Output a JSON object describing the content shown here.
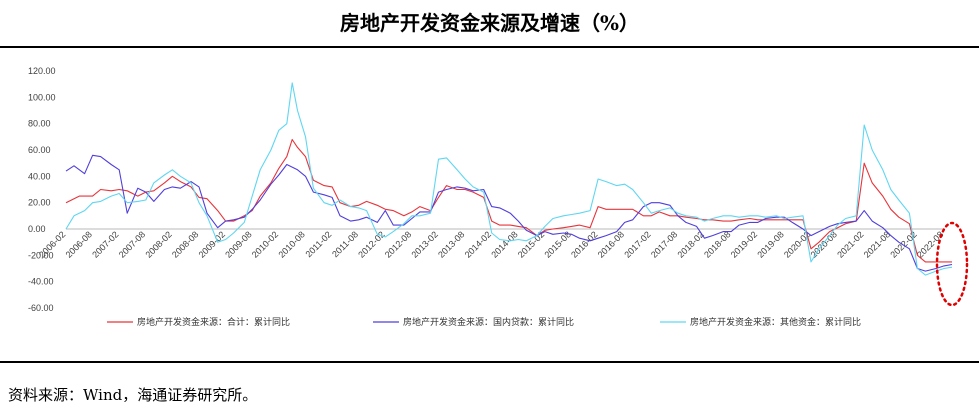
{
  "header": {
    "title": "房地产开发资金来源及增速（%）"
  },
  "footer": {
    "source": "资料来源：Wind，海通证券研究所。"
  },
  "chart_data": {
    "type": "line",
    "title": "房地产开发资金来源及增速（%）",
    "xlabel": "",
    "ylabel": "",
    "ylim": [
      -60,
      120
    ],
    "y_ticks": [
      "120.00",
      "100.00",
      "80.00",
      "60.00",
      "40.00",
      "20.00",
      "0.00",
      "-20.00",
      "-40.00",
      "-60.00"
    ],
    "x_ticks": [
      "2006-02",
      "2006-08",
      "2007-02",
      "2007-08",
      "2008-02",
      "2008-08",
      "2009-02",
      "2009-08",
      "2010-02",
      "2010-08",
      "2011-02",
      "2011-08",
      "2012-02",
      "2012-08",
      "2013-02",
      "2013-08",
      "2014-02",
      "2014-08",
      "2015-02",
      "2015-08",
      "2016-02",
      "2016-08",
      "2017-02",
      "2017-08",
      "2018-02",
      "2018-08",
      "2019-02",
      "2019-08",
      "2020-02",
      "2020-08",
      "2021-02",
      "2021-08",
      "2022-02",
      "2022-08"
    ],
    "legend_position": "bottom",
    "grid": false,
    "series": [
      {
        "name": "房地产开发资金来源：合计：累计同比",
        "color": "#e8343a",
        "points": [
          [
            0,
            20
          ],
          [
            0.5,
            25
          ],
          [
            1,
            25
          ],
          [
            1.3,
            30
          ],
          [
            1.7,
            29
          ],
          [
            2,
            30
          ],
          [
            2.3,
            29
          ],
          [
            2.7,
            25
          ],
          [
            3,
            28
          ],
          [
            3.3,
            29
          ],
          [
            3.7,
            35
          ],
          [
            4,
            40
          ],
          [
            4.3,
            36
          ],
          [
            4.7,
            32
          ],
          [
            5,
            24
          ],
          [
            5.3,
            23
          ],
          [
            5.7,
            14
          ],
          [
            6,
            6
          ],
          [
            6.3,
            6
          ],
          [
            6.7,
            10
          ],
          [
            7,
            14
          ],
          [
            7.3,
            25
          ],
          [
            7.7,
            35
          ],
          [
            8,
            46
          ],
          [
            8.3,
            55
          ],
          [
            8.5,
            68
          ],
          [
            8.7,
            62
          ],
          [
            9,
            55
          ],
          [
            9.3,
            37
          ],
          [
            9.7,
            33
          ],
          [
            10,
            32
          ],
          [
            10.3,
            20
          ],
          [
            10.7,
            17
          ],
          [
            11,
            18
          ],
          [
            11.3,
            21
          ],
          [
            11.7,
            18
          ],
          [
            12,
            15
          ],
          [
            12.3,
            14
          ],
          [
            12.7,
            10
          ],
          [
            13,
            13
          ],
          [
            13.3,
            17
          ],
          [
            13.7,
            14
          ],
          [
            14,
            24
          ],
          [
            14.3,
            33
          ],
          [
            14.7,
            30
          ],
          [
            15,
            30
          ],
          [
            15.3,
            28
          ],
          [
            15.7,
            24
          ],
          [
            16,
            6
          ],
          [
            16.3,
            3
          ],
          [
            16.7,
            3
          ],
          [
            17,
            2
          ],
          [
            17.3,
            1
          ],
          [
            17.7,
            -5
          ],
          [
            18,
            -1
          ],
          [
            18.3,
            0
          ],
          [
            18.7,
            1
          ],
          [
            19,
            2
          ],
          [
            19.3,
            3
          ],
          [
            19.7,
            1
          ],
          [
            20,
            17
          ],
          [
            20.3,
            15
          ],
          [
            20.7,
            15
          ],
          [
            21,
            15
          ],
          [
            21.3,
            15
          ],
          [
            21.7,
            10
          ],
          [
            22,
            10
          ],
          [
            22.3,
            13
          ],
          [
            22.7,
            10
          ],
          [
            23,
            10
          ],
          [
            23.3,
            9
          ],
          [
            23.7,
            8
          ],
          [
            24,
            7
          ],
          [
            24.3,
            7
          ],
          [
            24.7,
            6
          ],
          [
            25,
            6
          ],
          [
            25.3,
            7
          ],
          [
            25.7,
            8
          ],
          [
            26,
            7
          ],
          [
            26.3,
            7
          ],
          [
            26.7,
            7
          ],
          [
            27,
            7
          ],
          [
            27.3,
            7
          ],
          [
            27.7,
            7
          ],
          [
            28,
            -15
          ],
          [
            28.3,
            -10
          ],
          [
            28.7,
            -2
          ],
          [
            29,
            1
          ],
          [
            29.3,
            4
          ],
          [
            29.7,
            6
          ],
          [
            30,
            50
          ],
          [
            30.3,
            35
          ],
          [
            30.7,
            25
          ],
          [
            31,
            15
          ],
          [
            31.3,
            9
          ],
          [
            31.7,
            4
          ],
          [
            32,
            -20
          ],
          [
            32.3,
            -25
          ],
          [
            32.7,
            -25
          ],
          [
            33,
            -25
          ],
          [
            33.3,
            -25
          ]
        ]
      },
      {
        "name": "房地产开发资金来源：国内贷款：累计同比",
        "color": "#4f3fdc",
        "points": [
          [
            0,
            44
          ],
          [
            0.3,
            48
          ],
          [
            0.7,
            42
          ],
          [
            1,
            56
          ],
          [
            1.3,
            55
          ],
          [
            1.7,
            49
          ],
          [
            2,
            45
          ],
          [
            2.3,
            12
          ],
          [
            2.7,
            31
          ],
          [
            3,
            28
          ],
          [
            3.3,
            21
          ],
          [
            3.7,
            30
          ],
          [
            4,
            32
          ],
          [
            4.3,
            31
          ],
          [
            4.7,
            36
          ],
          [
            5,
            32
          ],
          [
            5.3,
            12
          ],
          [
            5.7,
            1
          ],
          [
            6,
            6
          ],
          [
            6.3,
            7
          ],
          [
            6.7,
            9
          ],
          [
            7,
            15
          ],
          [
            7.3,
            22
          ],
          [
            7.7,
            34
          ],
          [
            8,
            41
          ],
          [
            8.3,
            49
          ],
          [
            8.7,
            45
          ],
          [
            9,
            40
          ],
          [
            9.3,
            28
          ],
          [
            9.7,
            26
          ],
          [
            10,
            24
          ],
          [
            10.3,
            10
          ],
          [
            10.7,
            6
          ],
          [
            11,
            7
          ],
          [
            11.3,
            9
          ],
          [
            11.7,
            5
          ],
          [
            12,
            14
          ],
          [
            12.3,
            3
          ],
          [
            12.7,
            3
          ],
          [
            13,
            8
          ],
          [
            13.3,
            13
          ],
          [
            13.7,
            13
          ],
          [
            14,
            28
          ],
          [
            14.3,
            30
          ],
          [
            14.7,
            32
          ],
          [
            15,
            31
          ],
          [
            15.3,
            29
          ],
          [
            15.7,
            30
          ],
          [
            16,
            17
          ],
          [
            16.3,
            16
          ],
          [
            16.7,
            12
          ],
          [
            17,
            6
          ],
          [
            17.3,
            -1
          ],
          [
            17.7,
            -5
          ],
          [
            18,
            -2
          ],
          [
            18.3,
            -4
          ],
          [
            18.7,
            -3
          ],
          [
            19,
            -4
          ],
          [
            19.3,
            -7
          ],
          [
            19.7,
            -9
          ],
          [
            20,
            -7
          ],
          [
            20.3,
            -5
          ],
          [
            20.7,
            -2
          ],
          [
            21,
            5
          ],
          [
            21.3,
            7
          ],
          [
            21.7,
            17
          ],
          [
            22,
            20
          ],
          [
            22.3,
            20
          ],
          [
            22.7,
            18
          ],
          [
            23,
            10
          ],
          [
            23.3,
            5
          ],
          [
            23.7,
            2
          ],
          [
            24,
            -7
          ],
          [
            24.3,
            -5
          ],
          [
            24.7,
            -2
          ],
          [
            25,
            -2
          ],
          [
            25.3,
            3
          ],
          [
            25.7,
            5
          ],
          [
            26,
            5
          ],
          [
            26.3,
            8
          ],
          [
            26.7,
            9
          ],
          [
            27,
            9
          ],
          [
            27.3,
            5
          ],
          [
            27.7,
            0
          ],
          [
            28,
            -5
          ],
          [
            28.3,
            -2
          ],
          [
            28.7,
            2
          ],
          [
            29,
            4
          ],
          [
            29.3,
            5
          ],
          [
            29.7,
            6
          ],
          [
            30,
            14
          ],
          [
            30.3,
            6
          ],
          [
            30.7,
            1
          ],
          [
            31,
            -5
          ],
          [
            31.3,
            -10
          ],
          [
            31.7,
            -15
          ],
          [
            32,
            -30
          ],
          [
            32.3,
            -32
          ],
          [
            32.7,
            -30
          ],
          [
            33,
            -28
          ],
          [
            33.3,
            -27
          ]
        ]
      },
      {
        "name": "房地产开发资金来源：其他资金：累计同比",
        "color": "#5fd6f2",
        "points": [
          [
            0,
            0
          ],
          [
            0.3,
            10
          ],
          [
            0.7,
            14
          ],
          [
            1,
            20
          ],
          [
            1.3,
            21
          ],
          [
            1.7,
            25
          ],
          [
            2,
            27
          ],
          [
            2.3,
            20
          ],
          [
            2.7,
            21
          ],
          [
            3,
            22
          ],
          [
            3.3,
            35
          ],
          [
            3.7,
            41
          ],
          [
            4,
            45
          ],
          [
            4.3,
            40
          ],
          [
            4.7,
            35
          ],
          [
            5,
            20
          ],
          [
            5.3,
            10
          ],
          [
            5.7,
            -10
          ],
          [
            6,
            -8
          ],
          [
            6.3,
            -3
          ],
          [
            6.7,
            5
          ],
          [
            7,
            25
          ],
          [
            7.3,
            45
          ],
          [
            7.7,
            60
          ],
          [
            8,
            75
          ],
          [
            8.3,
            80
          ],
          [
            8.5,
            111
          ],
          [
            8.7,
            90
          ],
          [
            9,
            70
          ],
          [
            9.3,
            31
          ],
          [
            9.7,
            20
          ],
          [
            10,
            18
          ],
          [
            10.3,
            22
          ],
          [
            10.7,
            17
          ],
          [
            11,
            16
          ],
          [
            11.3,
            14
          ],
          [
            11.7,
            -4
          ],
          [
            12,
            -6
          ],
          [
            12.3,
            -2
          ],
          [
            12.7,
            4
          ],
          [
            13,
            10
          ],
          [
            13.3,
            10
          ],
          [
            13.7,
            12
          ],
          [
            14,
            53
          ],
          [
            14.3,
            54
          ],
          [
            14.7,
            45
          ],
          [
            15,
            38
          ],
          [
            15.3,
            32
          ],
          [
            15.7,
            28
          ],
          [
            16,
            -3
          ],
          [
            16.3,
            -8
          ],
          [
            16.7,
            -9
          ],
          [
            17,
            -8
          ],
          [
            17.3,
            -9
          ],
          [
            17.7,
            -5
          ],
          [
            18,
            2
          ],
          [
            18.3,
            8
          ],
          [
            18.7,
            10
          ],
          [
            19,
            11
          ],
          [
            19.3,
            12
          ],
          [
            19.7,
            14
          ],
          [
            20,
            38
          ],
          [
            20.3,
            36
          ],
          [
            20.7,
            33
          ],
          [
            21,
            34
          ],
          [
            21.3,
            30
          ],
          [
            21.7,
            20
          ],
          [
            22,
            12
          ],
          [
            22.3,
            14
          ],
          [
            22.7,
            16
          ],
          [
            23,
            12
          ],
          [
            23.3,
            10
          ],
          [
            23.7,
            9
          ],
          [
            24,
            6
          ],
          [
            24.3,
            8
          ],
          [
            24.7,
            10
          ],
          [
            25,
            10
          ],
          [
            25.3,
            9
          ],
          [
            25.7,
            10
          ],
          [
            26,
            10
          ],
          [
            26.3,
            9
          ],
          [
            26.7,
            10
          ],
          [
            27,
            8
          ],
          [
            27.3,
            9
          ],
          [
            27.7,
            10
          ],
          [
            28,
            -25
          ],
          [
            28.3,
            -15
          ],
          [
            28.7,
            -5
          ],
          [
            29,
            3
          ],
          [
            29.3,
            8
          ],
          [
            29.7,
            10
          ],
          [
            30,
            79
          ],
          [
            30.3,
            60
          ],
          [
            30.7,
            45
          ],
          [
            31,
            30
          ],
          [
            31.3,
            22
          ],
          [
            31.7,
            12
          ],
          [
            32,
            -30
          ],
          [
            32.3,
            -35
          ],
          [
            32.7,
            -32
          ],
          [
            33,
            -30
          ],
          [
            33.3,
            -29
          ]
        ]
      }
    ]
  }
}
